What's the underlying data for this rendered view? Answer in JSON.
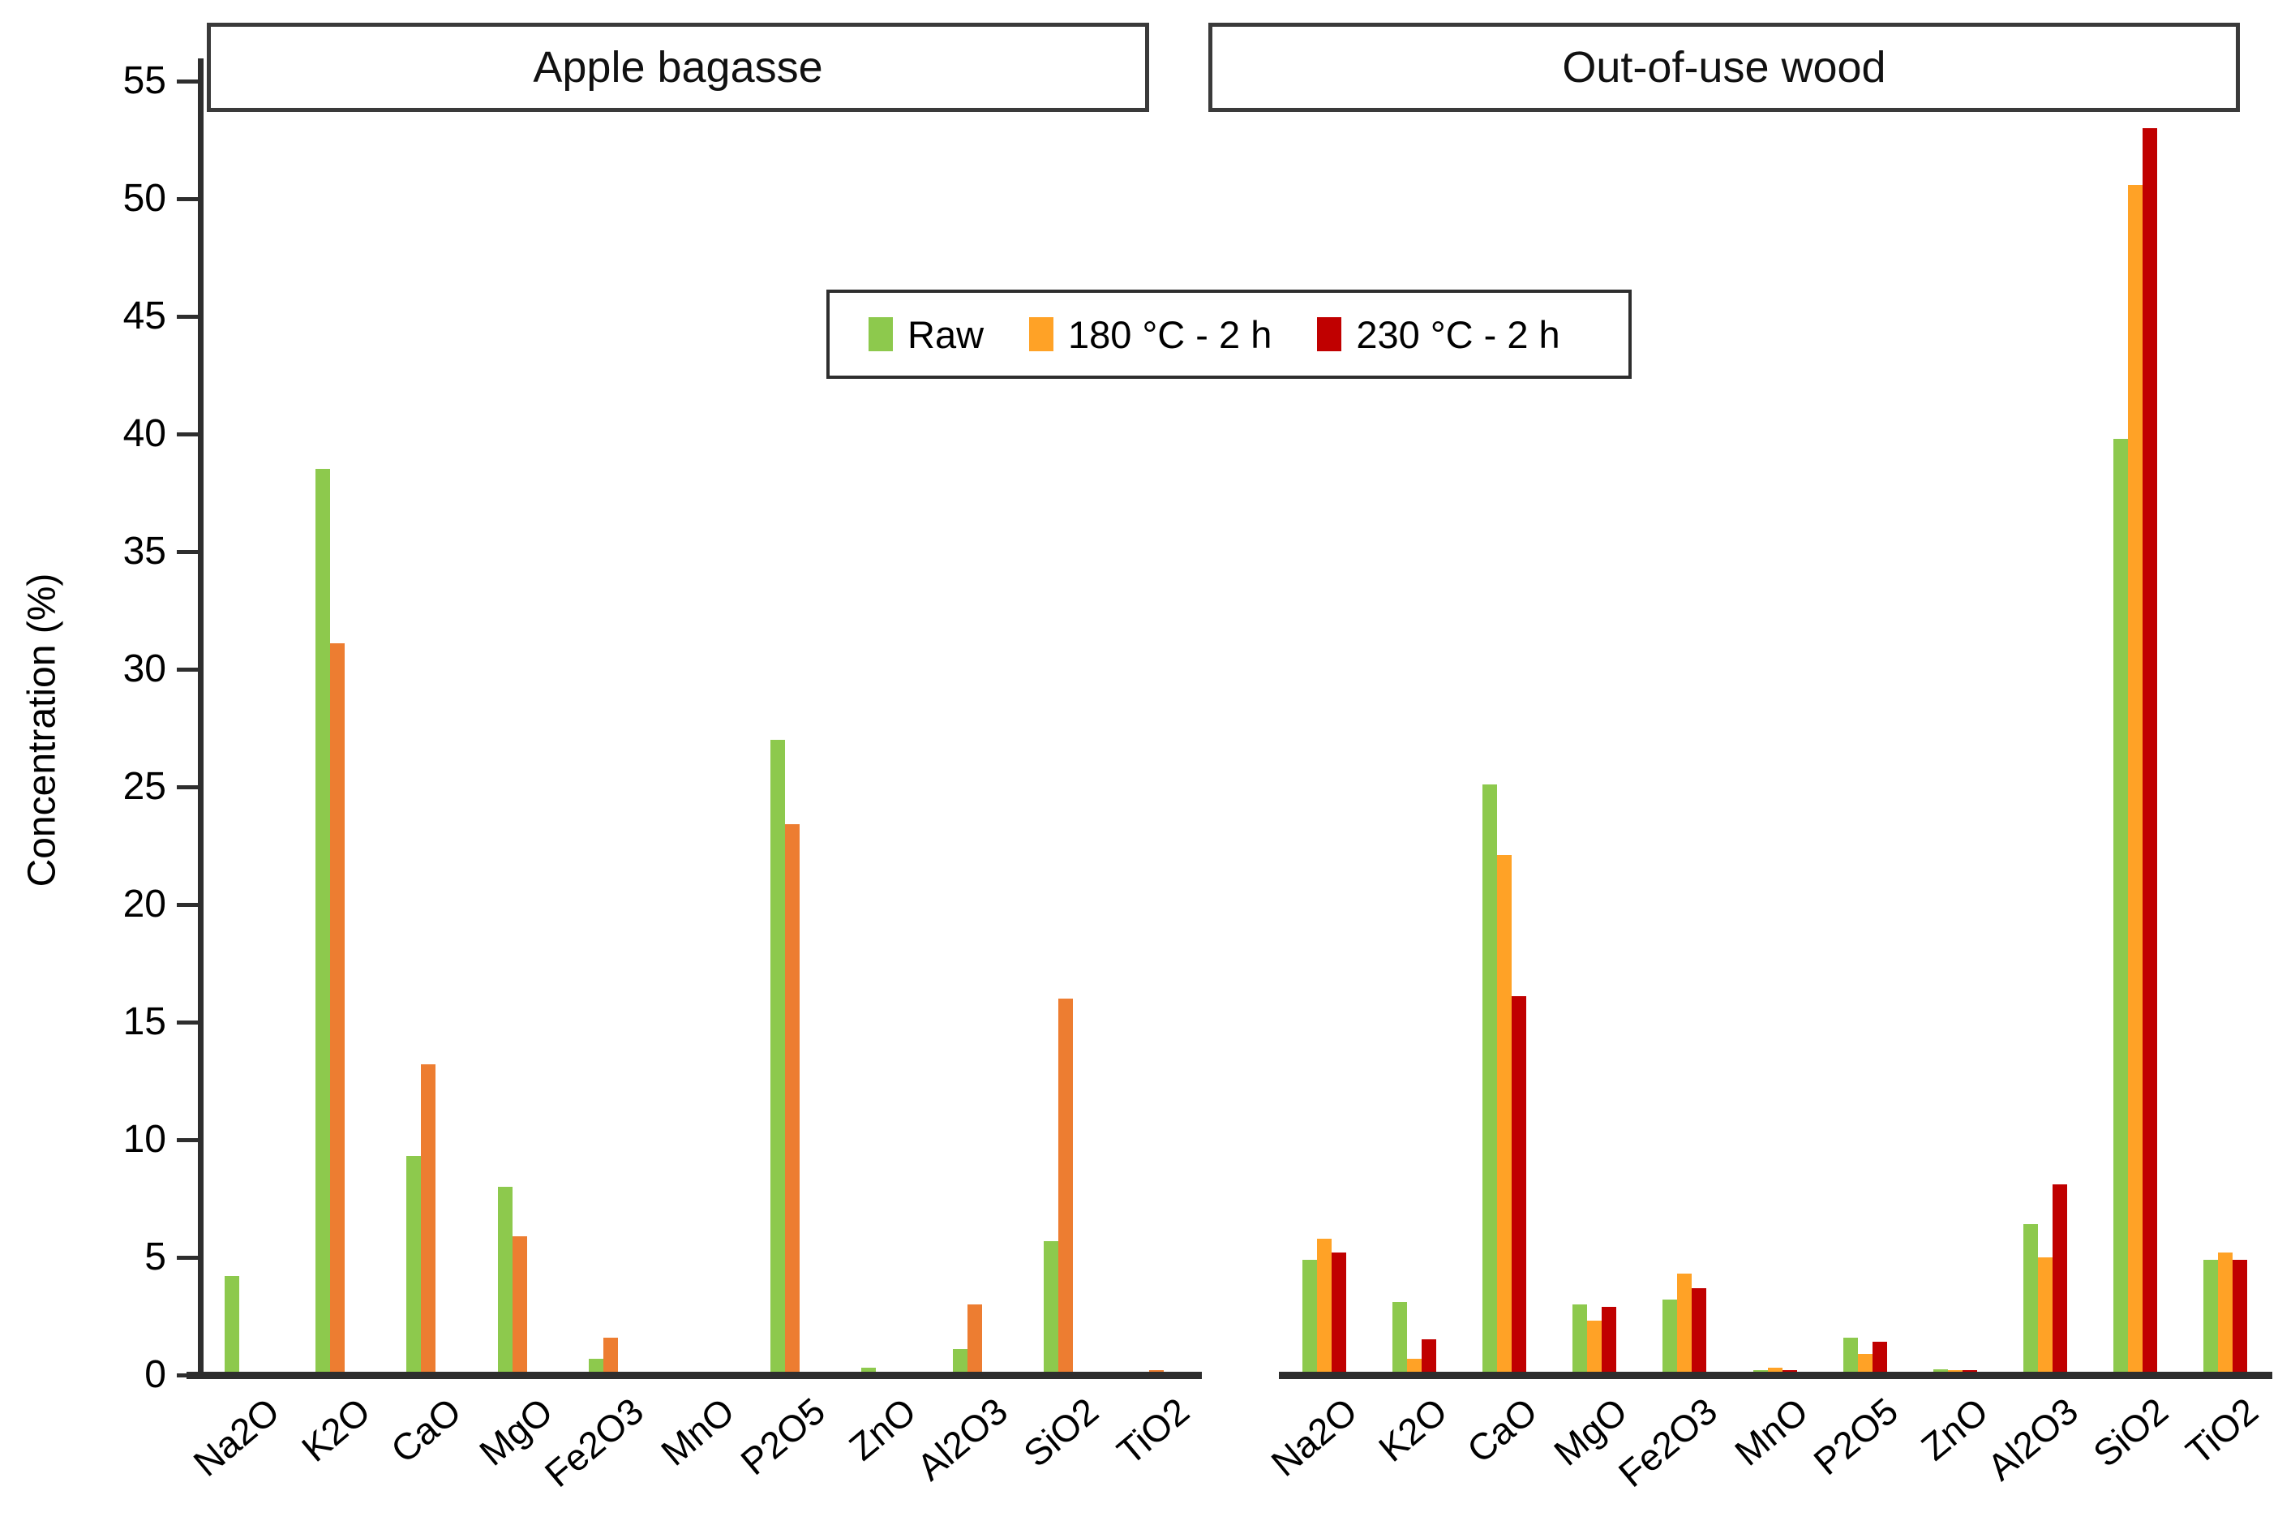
{
  "figure": {
    "y_axis_title": "Concentration (%)",
    "panel_titles": {
      "left": "Apple bagasse",
      "right": "Out-of-use wood"
    },
    "legend": [
      {
        "label": "Raw",
        "color": "#8DC94D"
      },
      {
        "label": "180 °C - 2 h",
        "color": "#FFA226"
      },
      {
        "label": "230 °C - 2 h",
        "color": "#C00000"
      }
    ],
    "colors": {
      "green": "#8DC94D",
      "orange_apple": "#ED7D31",
      "orange_wood": "#FFA226",
      "red": "#C00000",
      "axis": "#2e2e2e"
    }
  },
  "chart_data": {
    "type": "bar",
    "title": "",
    "ylabel": "Concentration (%)",
    "ylim": [
      0,
      55
    ],
    "yticks": [
      0,
      5,
      10,
      15,
      20,
      25,
      30,
      35,
      40,
      45,
      50,
      55
    ],
    "grid": false,
    "legend_position": "top-center",
    "categories": [
      "Na2O",
      "K2O",
      "CaO",
      "MgO",
      "Fe2O3",
      "MnO",
      "P2O5",
      "ZnO",
      "Al2O3",
      "SiO2",
      "TiO2"
    ],
    "panels": [
      {
        "title": "Apple bagasse",
        "series": [
          {
            "name": "Raw",
            "color": "#8DC94D",
            "values": [
              4.2,
              38.5,
              9.3,
              8.0,
              0.7,
              0,
              27.0,
              0.3,
              1.1,
              5.7,
              0
            ]
          },
          {
            "name": "180 °C - 2 h",
            "color": "#ED7D31",
            "values": [
              0,
              31.1,
              13.2,
              5.9,
              1.6,
              0,
              23.4,
              0,
              3.0,
              16.0,
              0.2
            ]
          },
          {
            "name": "230 °C - 2 h",
            "color": "#C00000",
            "values": [
              0,
              0,
              0,
              0,
              0,
              0,
              0,
              0,
              0,
              0,
              0
            ]
          }
        ]
      },
      {
        "title": "Out-of-use wood",
        "series": [
          {
            "name": "Raw",
            "color": "#8DC94D",
            "values": [
              4.9,
              3.1,
              25.1,
              3.0,
              3.2,
              0.2,
              1.6,
              0.25,
              6.4,
              39.8,
              4.9
            ]
          },
          {
            "name": "180 °C - 2 h",
            "color": "#FFA226",
            "values": [
              5.8,
              0.7,
              22.1,
              2.3,
              4.3,
              0.3,
              0.9,
              0.2,
              5.0,
              50.6,
              5.2
            ]
          },
          {
            "name": "230 °C - 2 h",
            "color": "#C00000",
            "values": [
              5.2,
              1.5,
              16.1,
              2.9,
              3.7,
              0.2,
              1.4,
              0.2,
              8.1,
              53.0,
              4.9
            ]
          }
        ]
      }
    ]
  }
}
